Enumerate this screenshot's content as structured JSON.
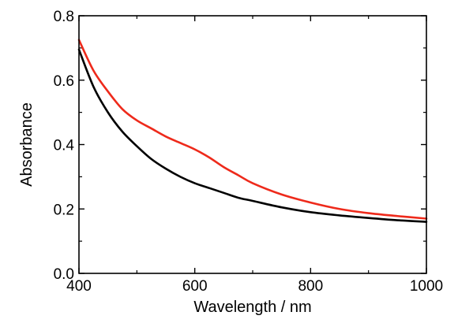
{
  "chart_data": {
    "type": "line",
    "title": "",
    "xlabel": "Wavelength / nm",
    "ylabel": "Absorbance",
    "xlim": [
      400,
      1000
    ],
    "ylim": [
      0.0,
      0.8
    ],
    "xticks": [
      400,
      600,
      800,
      1000
    ],
    "xtick_labels": [
      "400",
      "600",
      "800",
      "1000"
    ],
    "yticks": [
      0.0,
      0.2,
      0.4,
      0.6,
      0.8
    ],
    "ytick_labels": [
      "0.0",
      "0.2",
      "0.4",
      "0.6",
      "0.8"
    ],
    "grid": false,
    "legend": "none",
    "series": [
      {
        "color": "#ee2a1b",
        "x": [
          400,
          425,
          450,
          475,
          500,
          525,
          550,
          575,
          600,
          625,
          650,
          675,
          700,
          750,
          800,
          850,
          900,
          950,
          1000
        ],
        "y": [
          0.725,
          0.63,
          0.565,
          0.51,
          0.475,
          0.45,
          0.425,
          0.405,
          0.385,
          0.36,
          0.33,
          0.305,
          0.28,
          0.245,
          0.22,
          0.2,
          0.187,
          0.178,
          0.17
        ]
      },
      {
        "color": "#000000",
        "x": [
          400,
          425,
          450,
          475,
          500,
          525,
          550,
          575,
          600,
          625,
          650,
          675,
          700,
          750,
          800,
          850,
          900,
          950,
          1000
        ],
        "y": [
          0.695,
          0.58,
          0.5,
          0.44,
          0.395,
          0.355,
          0.325,
          0.3,
          0.28,
          0.265,
          0.25,
          0.235,
          0.225,
          0.205,
          0.19,
          0.18,
          0.172,
          0.165,
          0.16
        ]
      }
    ]
  }
}
